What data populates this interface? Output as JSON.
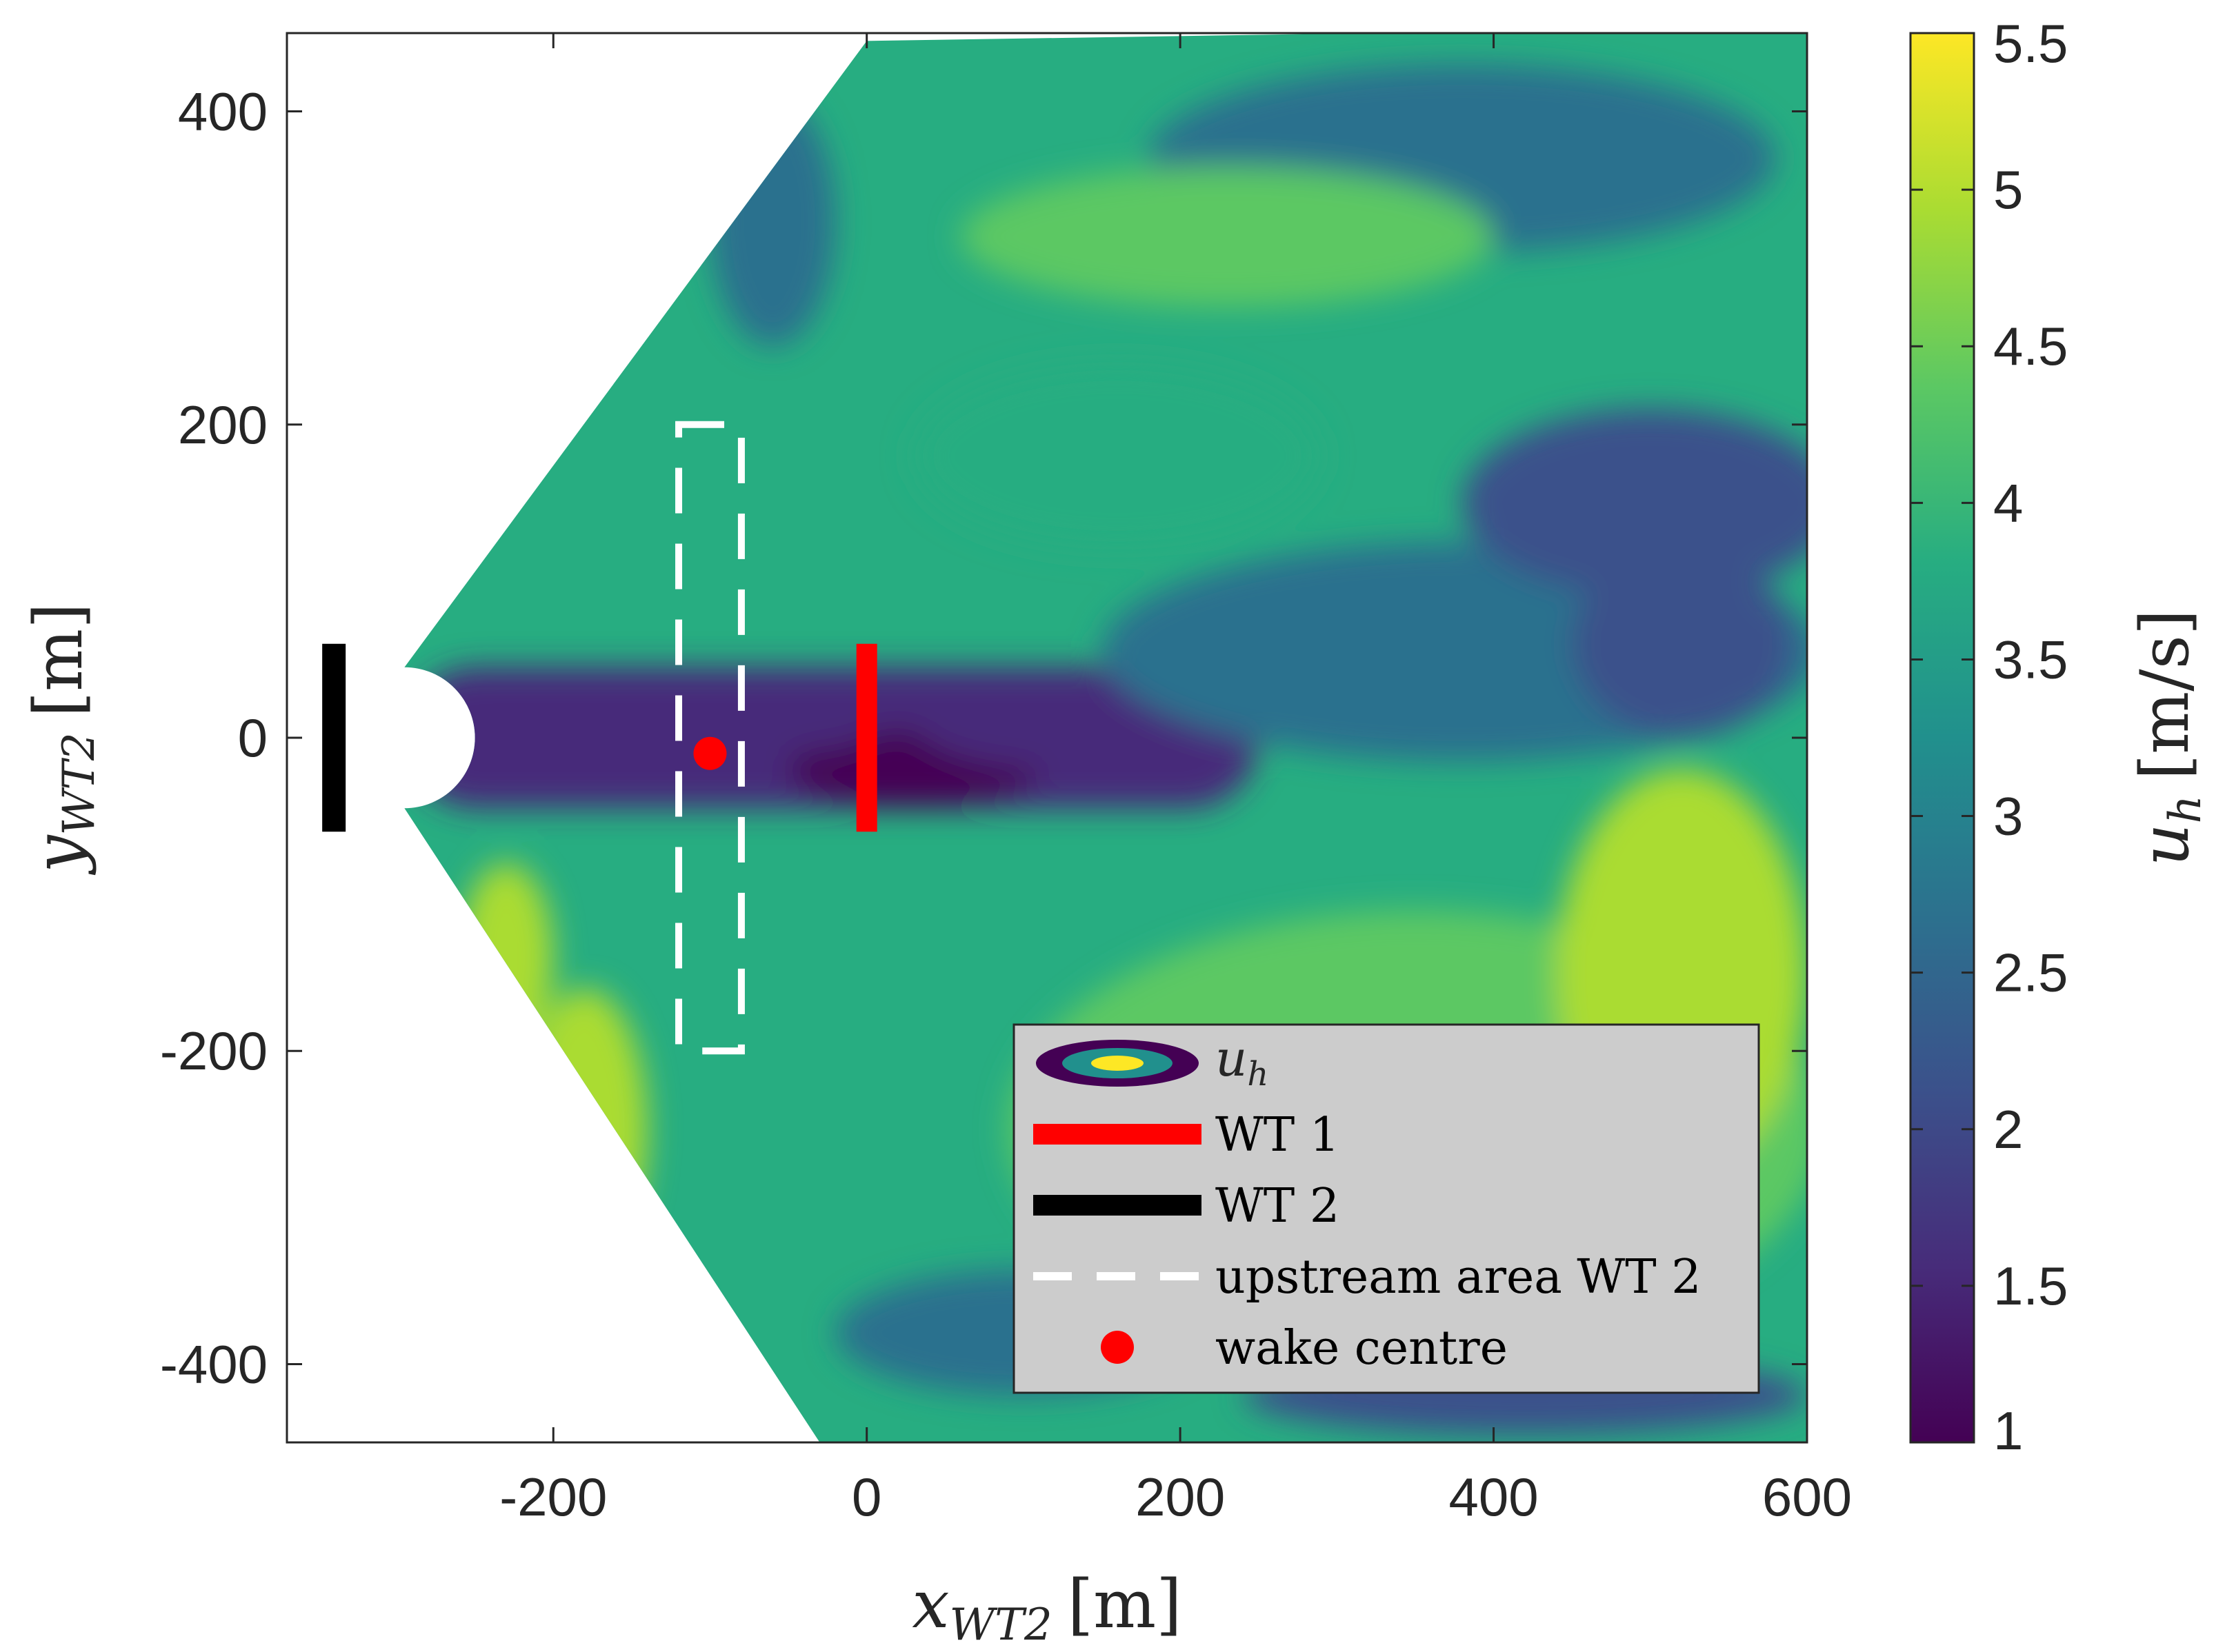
{
  "chart_data": {
    "type": "heatmap",
    "title": "",
    "xlabel": {
      "symbol": "x",
      "subscript": "WT2",
      "unit": "[m]"
    },
    "ylabel": {
      "symbol": "y",
      "subscript": "WT2",
      "unit": "[m]"
    },
    "xlim": [
      -370,
      600
    ],
    "ylim": [
      -450,
      450
    ],
    "x_ticks": [
      -200,
      0,
      200,
      400,
      600
    ],
    "x_tick_labels": [
      "-200",
      "0",
      "200",
      "400",
      "600"
    ],
    "y_ticks": [
      -400,
      -200,
      0,
      200,
      400
    ],
    "y_tick_labels": [
      "-400",
      "-200",
      "0",
      "200",
      "400"
    ],
    "colorbar": {
      "label": {
        "symbol": "u",
        "subscript": "h",
        "unit": "[m/s]"
      },
      "range": [
        1,
        5.5
      ],
      "ticks": [
        1,
        1.5,
        2,
        2.5,
        3,
        3.5,
        4,
        4.5,
        5,
        5.5
      ],
      "tick_labels": [
        "1",
        "1.5",
        "2",
        "2.5",
        "3",
        "3.5",
        "4",
        "4.5",
        "5",
        "5.5"
      ],
      "colormap": "viridis"
    },
    "scan_sector": {
      "apex": [
        -295,
        0
      ],
      "upper_edge_end": [
        0,
        445
      ],
      "lower_edge_end": [
        -30,
        -450
      ],
      "inner_radius_m": 60
    },
    "field_regions": [
      {
        "kind": "band",
        "y_center": 0,
        "half_width": 45,
        "x_range": [
          -295,
          250
        ],
        "value": 1.6
      },
      {
        "kind": "blob",
        "center": [
          30,
          -20
        ],
        "radii": [
          80,
          25
        ],
        "value": 1.2
      },
      {
        "kind": "blob",
        "center": [
          -60,
          10
        ],
        "radii": [
          70,
          20
        ],
        "value": 1.3
      },
      {
        "kind": "blob",
        "center": [
          120,
          10
        ],
        "radii": [
          90,
          30
        ],
        "value": 1.4
      },
      {
        "kind": "blob",
        "center": [
          380,
          55
        ],
        "radii": [
          230,
          70
        ],
        "value": 2.6
      },
      {
        "kind": "blob",
        "center": [
          520,
          60
        ],
        "radii": [
          70,
          60
        ],
        "value": 1.9
      },
      {
        "kind": "blob",
        "center": [
          500,
          150
        ],
        "radii": [
          120,
          60
        ],
        "value": 2.3
      },
      {
        "kind": "blob",
        "center": [
          380,
          370
        ],
        "radii": [
          200,
          60
        ],
        "value": 2.9
      },
      {
        "kind": "blob",
        "center": [
          230,
          320
        ],
        "radii": [
          170,
          45
        ],
        "value": 4.5
      },
      {
        "kind": "blob",
        "center": [
          160,
          180
        ],
        "radii": [
          130,
          60
        ],
        "value": 3.6
      },
      {
        "kind": "blob",
        "center": [
          -60,
          330
        ],
        "radii": [
          40,
          80
        ],
        "value": 2.8
      },
      {
        "kind": "blob",
        "center": [
          350,
          -250
        ],
        "radii": [
          260,
          140
        ],
        "value": 4.4
      },
      {
        "kind": "blob",
        "center": [
          520,
          -150
        ],
        "radii": [
          80,
          130
        ],
        "value": 4.8
      },
      {
        "kind": "blob",
        "center": [
          100,
          -380
        ],
        "radii": [
          120,
          40
        ],
        "value": 2.6
      },
      {
        "kind": "blob",
        "center": [
          420,
          -420
        ],
        "radii": [
          180,
          25
        ],
        "value": 2.4
      },
      {
        "kind": "blob",
        "center": [
          -180,
          -250
        ],
        "radii": [
          40,
          90
        ],
        "value": 4.8
      },
      {
        "kind": "blob",
        "center": [
          -230,
          -140
        ],
        "radii": [
          30,
          60
        ],
        "value": 4.9
      }
    ],
    "wt1_line": {
      "x": 0,
      "y": [
        -60,
        60
      ]
    },
    "wt2_line": {
      "x": -340,
      "y": [
        -60,
        60
      ]
    },
    "upstream_area": {
      "x": [
        -120,
        -80
      ],
      "y": [
        -200,
        200
      ]
    },
    "wake_centre": {
      "x": -100,
      "y": -10
    },
    "legend": {
      "placement": "bottom-right",
      "entries": [
        {
          "type": "contour",
          "label": {
            "symbol": "u",
            "subscript": "h"
          }
        },
        {
          "type": "line",
          "color": "#ff0000",
          "label": "WT 1"
        },
        {
          "type": "line",
          "color": "#000000",
          "label": "WT 2"
        },
        {
          "type": "dashed",
          "color": "#ffffff",
          "label": "upstream area WT 2"
        },
        {
          "type": "marker",
          "color": "#ff0000",
          "label": "wake centre"
        }
      ]
    }
  }
}
